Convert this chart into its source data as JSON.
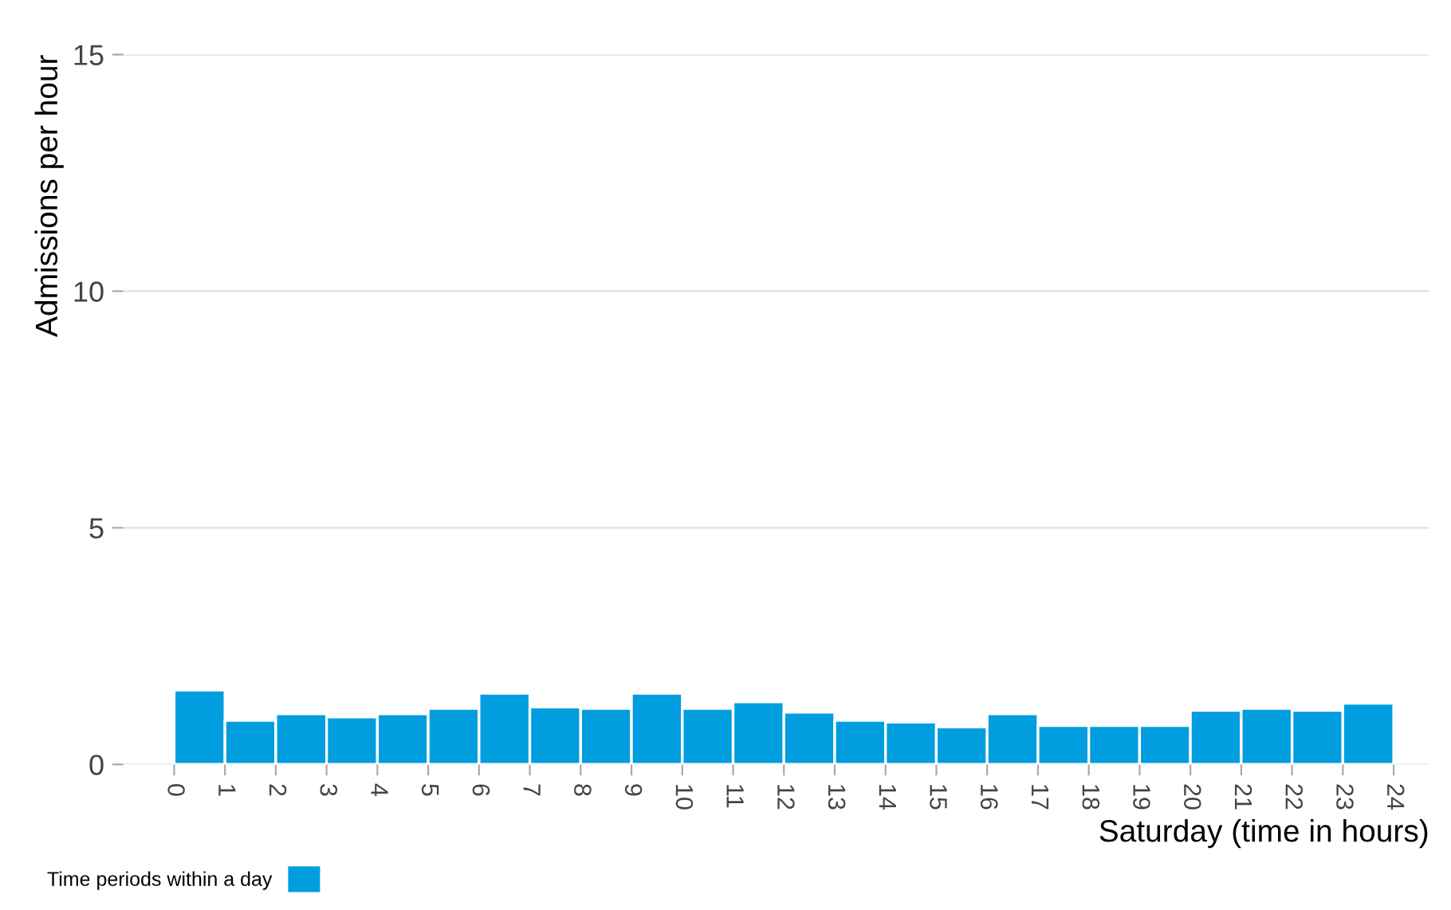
{
  "chart_data": {
    "type": "histogram",
    "xlabel": "Saturday (time in hours)",
    "ylabel": "Admissions per hour",
    "bins": [
      0,
      1,
      2,
      3,
      4,
      5,
      6,
      7,
      8,
      9,
      10,
      11,
      12,
      13,
      14,
      15,
      16,
      17,
      18,
      19,
      20,
      21,
      22,
      23,
      24
    ],
    "series": [
      {
        "name": "Time periods within a day",
        "color": "#009ddf",
        "values": [
          1.57,
          0.93,
          1.07,
          1.0,
          1.07,
          1.18,
          1.5,
          1.21,
          1.18,
          1.5,
          1.18,
          1.32,
          1.1,
          0.93,
          0.89,
          0.79,
          1.07,
          0.82,
          0.82,
          0.82,
          1.14,
          1.18,
          1.14,
          1.29
        ]
      }
    ],
    "xlim": [
      -1,
      24.7
    ],
    "xticks": [
      0,
      1,
      2,
      3,
      4,
      5,
      6,
      7,
      8,
      9,
      10,
      11,
      12,
      13,
      14,
      15,
      16,
      17,
      18,
      19,
      20,
      21,
      22,
      23,
      24
    ],
    "ylim": [
      0,
      15
    ],
    "yticks": [
      0,
      5,
      10,
      15
    ],
    "grid": "y",
    "legend": "bottom left"
  }
}
